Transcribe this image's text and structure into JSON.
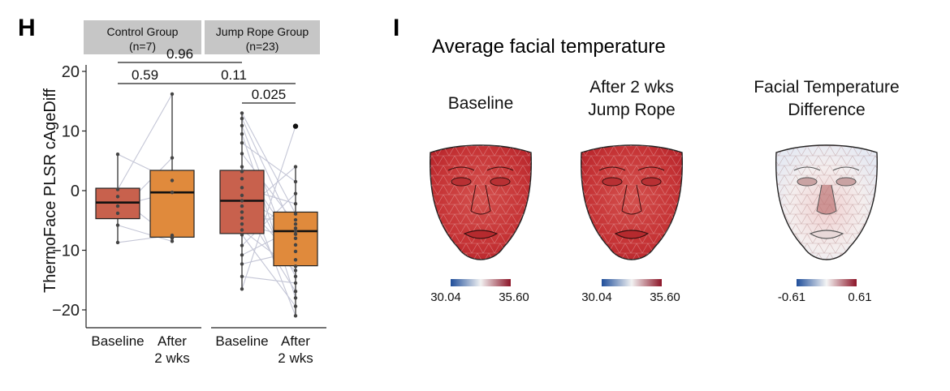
{
  "panel_h": {
    "letter": "H"
  },
  "panel_i": {
    "letter": "I",
    "title": "Average facial temperature"
  },
  "colors": {
    "baseline_box": "#c8614d",
    "after_box": "#e08a3c",
    "header_bg": "#c6c6c6",
    "pair_line": "#c4c6d6",
    "point": "#444444",
    "cmap_low": "#1f4e9a",
    "cmap_mid": "#f5f5f5",
    "cmap_high": "#8c1528",
    "face_temp": "#c53a3c"
  },
  "chart_data": [
    {
      "type": "box",
      "ylabel": "ThermoFace PLSR cAgeDiff",
      "ylim": [
        -22,
        21
      ],
      "yticks": [
        20,
        10,
        0,
        -10,
        -20
      ],
      "groups": [
        {
          "name": "Control Group",
          "n_label": "(n=7)",
          "boxes": [
            {
              "label": "Baseline",
              "q1": -4.7,
              "median": -2.0,
              "q3": 0.4,
              "lo": -8.7,
              "hi": 6.1,
              "points": [
                6.1,
                0.2,
                -1.0,
                -2.6,
                -3.8,
                -5.8,
                -8.7
              ]
            },
            {
              "label": "After\n2 wks",
              "q1": -7.8,
              "median": -0.3,
              "q3": 3.4,
              "lo": -8.5,
              "hi": 16.2,
              "points": [
                16.2,
                5.5,
                1.7,
                -0.3,
                -7.5,
                -8.0,
                -8.5
              ]
            }
          ]
        },
        {
          "name": "Jump Rope Group",
          "n_label": "(n=23)",
          "boxes": [
            {
              "label": "Baseline",
              "q1": -7.2,
              "median": -1.7,
              "q3": 3.4,
              "lo": -16.5,
              "hi": 13.0,
              "points": [
                13.0,
                12.1,
                10.9,
                9.5,
                8.0,
                6.2,
                4.0,
                3.2,
                2.0,
                0.5,
                -0.8,
                -1.7,
                -2.6,
                -3.6,
                -4.6,
                -5.6,
                -6.6,
                -7.4,
                -9.2,
                -10.8,
                -12.3,
                -14.4,
                -16.5
              ]
            },
            {
              "label": "After\n2 wks",
              "q1": -12.6,
              "median": -6.8,
              "q3": -3.6,
              "lo": -21.0,
              "hi": 4.0,
              "outliers": [
                10.8
              ],
              "points": [
                10.8,
                4.0,
                1.5,
                -0.5,
                -2.2,
                -3.9,
                -4.9,
                -5.6,
                -6.3,
                -6.8,
                -7.3,
                -8.0,
                -9.1,
                -10.2,
                -11.6,
                -12.7,
                -13.4,
                -14.4,
                -15.5,
                -16.9,
                -18.0,
                -19.4,
                -21.0
              ]
            }
          ]
        }
      ],
      "pvalues": [
        {
          "label": "0.96",
          "from": 0,
          "to": 2
        },
        {
          "label": "0.59",
          "from": 0,
          "to": 1
        },
        {
          "label": "0.11",
          "from": 1,
          "to": 3
        },
        {
          "label": "0.025",
          "from": 2,
          "to": 3
        }
      ]
    },
    {
      "type": "heatmap",
      "title": "Average facial temperature",
      "maps": [
        {
          "label_lines": [
            "Baseline"
          ],
          "colorbar_min": "30.04",
          "colorbar_max": "35.60",
          "diverging": false
        },
        {
          "label_lines": [
            "After 2 wks",
            "Jump Rope"
          ],
          "colorbar_min": "30.04",
          "colorbar_max": "35.60",
          "diverging": false
        },
        {
          "label_lines": [
            "Facial Temperature",
            "Difference"
          ],
          "colorbar_min": "-0.61",
          "colorbar_max": "0.61",
          "diverging": true
        }
      ]
    }
  ]
}
